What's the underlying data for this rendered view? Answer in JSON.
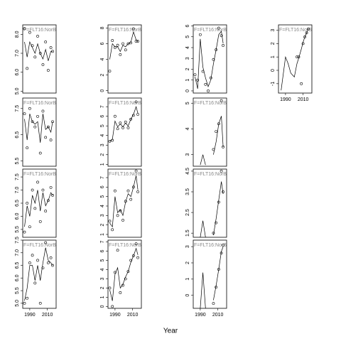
{
  "xlabel": "Year",
  "chart_data": [
    {
      "type": "scatter",
      "label": "F=FLT16:NorBa",
      "xlim": [
        1982,
        2020
      ],
      "ylim": [
        4.9,
        8.5
      ],
      "yticks": [
        {
          "value": 5,
          "label": "5.0"
        },
        {
          "value": 6,
          "label": "6.0"
        },
        {
          "value": 7,
          "label": "7.0"
        },
        {
          "value": 8,
          "label": "8.0"
        }
      ],
      "x": [
        1984,
        1987,
        1990,
        1993,
        1996,
        1999,
        2002,
        2005,
        2008,
        2011,
        2014,
        2016
      ],
      "values": [
        8.3,
        6.2,
        8.1,
        7.4,
        6.8,
        7.9,
        7.0,
        6.4,
        7.6,
        6.1,
        7.3,
        7.1
      ],
      "line_values": [
        7.6,
        6.8,
        7.6,
        7.3,
        7.0,
        7.5,
        7.0,
        6.7,
        7.2,
        6.6,
        7.1,
        7.1
      ]
    },
    {
      "type": "scatter",
      "label": "F=FLT16:NorBa",
      "xlim": [
        1982,
        2020
      ],
      "ylim": [
        -0.3,
        8.4
      ],
      "yticks": [
        0,
        2,
        4,
        6,
        8
      ],
      "x": [
        1984,
        1987,
        1990,
        1993,
        1996,
        1999,
        2002,
        2005,
        2008,
        2011,
        2014,
        2016
      ],
      "values": [
        2.5,
        6.4,
        5.5,
        5.8,
        4.6,
        6.0,
        5.2,
        6.0,
        6.1,
        7.9,
        6.3,
        6.3
      ],
      "line_values": [
        4.0,
        6.0,
        5.6,
        5.6,
        5.0,
        5.8,
        5.6,
        6.0,
        6.2,
        7.5,
        6.5,
        6.3
      ]
    },
    {
      "type": "scatter",
      "label": "F=FLT16:NorBa",
      "xlim": [
        1982,
        2020
      ],
      "ylim": [
        -0.2,
        6.1
      ],
      "yticks": [
        0,
        1,
        2,
        3,
        4,
        5,
        6
      ],
      "x": [
        1984,
        1987,
        1990,
        1993,
        1996,
        1999,
        2002,
        2005,
        2008,
        2011,
        2014,
        2016
      ],
      "values": [
        1.5,
        1.0,
        5.2,
        1.8,
        0.6,
        0.0,
        1.2,
        2.9,
        3.8,
        5.8,
        5.1,
        4.2
      ],
      "line_values": [
        1.3,
        0.2,
        4.8,
        2.2,
        1.2,
        0.4,
        1.0,
        2.5,
        3.8,
        5.2,
        5.5,
        4.4
      ]
    },
    {
      "type": "scatter",
      "label": "F=FLT16:NorBa",
      "xlim": [
        1982,
        2020
      ],
      "ylim": [
        -1.7,
        3.4
      ],
      "yticks": [
        -1,
        0,
        1,
        2,
        3
      ],
      "xticks": [
        1990,
        2010
      ],
      "x": [
        1985,
        1990,
        1993,
        1996,
        2000,
        2003,
        2005,
        2008,
        2010,
        2012,
        2014,
        2016
      ],
      "values": [
        null,
        null,
        null,
        null,
        null,
        1.0,
        1.0,
        -1.0,
        2.0,
        2.5,
        2.8,
        3.1
      ],
      "line_values": [
        -1.5,
        1.0,
        0.5,
        -0.2,
        -0.5,
        0.5,
        0.9,
        1.6,
        2.1,
        2.5,
        2.8,
        3.1
      ]
    },
    {
      "type": "scatter",
      "label": "F=FLT16:NorBa",
      "xlim": [
        1982,
        2020
      ],
      "ylim": [
        5.3,
        7.9
      ],
      "yticks": [
        5.5,
        6.5,
        7.5
      ],
      "x": [
        1984,
        1987,
        1990,
        1993,
        1996,
        1999,
        2002,
        2005,
        2008,
        2011,
        2014,
        2016
      ],
      "values": [
        7.3,
        6.0,
        7.5,
        7.0,
        6.8,
        7.2,
        5.8,
        7.4,
        6.4,
        6.8,
        6.3,
        7.0
      ],
      "line_values": [
        7.1,
        6.3,
        7.3,
        7.0,
        6.9,
        7.0,
        6.2,
        7.3,
        6.7,
        6.8,
        6.6,
        7.0
      ]
    },
    {
      "type": "scatter",
      "label": "F=FLT16:NorBa",
      "xlim": [
        1982,
        2020
      ],
      "ylim": [
        0.8,
        7.9
      ],
      "yticks": [
        1,
        2,
        3,
        4,
        5,
        6,
        7
      ],
      "x": [
        1984,
        1987,
        1990,
        1993,
        1996,
        1999,
        2002,
        2005,
        2008,
        2011,
        2014,
        2016
      ],
      "values": [
        3.4,
        3.5,
        6.0,
        4.7,
        5.3,
        4.8,
        5.4,
        4.8,
        5.7,
        6.1,
        7.5,
        6.2
      ],
      "line_values": [
        3.4,
        3.6,
        5.5,
        4.9,
        5.2,
        4.9,
        5.3,
        5.0,
        5.7,
        6.2,
        7.0,
        6.3
      ]
    },
    {
      "type": "scatter",
      "label": "F=FLT16:NorBa",
      "xlim": [
        1982,
        2020
      ],
      "ylim": [
        2.55,
        5.2
      ],
      "yticks": [
        3,
        4,
        5
      ],
      "x": [
        1984,
        1987,
        1990,
        1993,
        1996,
        1999,
        2002,
        2005,
        2008,
        2011,
        2014,
        2016
      ],
      "values": [
        null,
        null,
        null,
        null,
        null,
        null,
        null,
        3.2,
        3.9,
        4.2,
        5.1,
        3.3
      ],
      "line_values": [
        null,
        null,
        2.6,
        3.0,
        2.6,
        null,
        null,
        3.0,
        3.5,
        4.2,
        4.5,
        3.3
      ]
    },
    {
      "type": "scatter",
      "label": "F=FLT16:NorBa",
      "xlim": [
        1982,
        2020
      ],
      "ylim": [
        5.2,
        7.8
      ],
      "yticks": [
        5.5,
        {
          "value": 6,
          "label": "6.0"
        },
        6.5,
        {
          "value": 7,
          "label": "7.0"
        },
        7.5
      ],
      "x": [
        1984,
        1987,
        1990,
        1993,
        1996,
        1999,
        2002,
        2005,
        2008,
        2011,
        2014,
        2016
      ],
      "values": [
        5.4,
        6.5,
        5.6,
        7.0,
        6.3,
        7.3,
        5.8,
        7.0,
        6.2,
        6.6,
        7.1,
        6.8
      ],
      "line_values": [
        5.6,
        6.4,
        6.0,
        6.8,
        6.5,
        7.0,
        6.2,
        6.9,
        6.4,
        6.6,
        6.9,
        6.8
      ]
    },
    {
      "type": "scatter",
      "label": "F=FLT16:NorBa",
      "xlim": [
        1982,
        2020
      ],
      "ylim": [
        0.7,
        7.9
      ],
      "yticks": [
        1,
        2,
        3,
        4,
        5,
        6,
        7
      ],
      "x": [
        1984,
        1987,
        1990,
        1993,
        1996,
        1999,
        2002,
        2005,
        2008,
        2011,
        2014,
        2016
      ],
      "values": [
        2.4,
        1.5,
        5.6,
        3.0,
        3.5,
        2.5,
        4.5,
        5.6,
        4.7,
        6.0,
        7.7,
        5.5
      ],
      "line_values": [
        2.2,
        1.8,
        5.0,
        3.3,
        3.6,
        3.0,
        4.4,
        5.3,
        5.0,
        6.0,
        7.2,
        5.7
      ]
    },
    {
      "type": "scatter",
      "label": "F=FLT16:NorBa",
      "xlim": [
        1982,
        2020
      ],
      "ylim": [
        1.3,
        4.6
      ],
      "yticks": [
        1.5,
        2.5,
        3.5,
        4.5
      ],
      "x": [
        1984,
        1987,
        1990,
        1993,
        1996,
        1999,
        2002,
        2005,
        2008,
        2011,
        2014,
        2016
      ],
      "values": [
        null,
        null,
        null,
        null,
        null,
        null,
        null,
        1.5,
        2.0,
        3.0,
        4.5,
        3.5
      ],
      "line_values": [
        null,
        null,
        1.3,
        2.1,
        1.3,
        null,
        null,
        1.4,
        2.2,
        3.1,
        4.0,
        3.4
      ]
    },
    {
      "type": "scatter",
      "label": "F=FLT16:NorBa",
      "xlim": [
        1982,
        2020
      ],
      "ylim": [
        4.8,
        7.5
      ],
      "yticks": [
        {
          "value": 5,
          "label": "5.0"
        },
        5.5,
        {
          "value": 6,
          "label": "6.0"
        },
        6.5,
        {
          "value": 7,
          "label": "7.0"
        },
        7.5
      ],
      "xticks": [
        1990,
        2010
      ],
      "x": [
        1984,
        1987,
        1990,
        1993,
        1996,
        1999,
        2002,
        2005,
        2008,
        2011,
        2014,
        2016
      ],
      "values": [
        5.0,
        5.2,
        6.6,
        6.9,
        5.8,
        6.7,
        5.0,
        6.4,
        7.4,
        6.6,
        6.8,
        6.5
      ],
      "line_values": [
        5.1,
        5.6,
        6.5,
        6.5,
        5.9,
        6.5,
        5.9,
        6.6,
        7.2,
        6.7,
        6.6,
        6.5
      ]
    },
    {
      "type": "scatter",
      "label": "F=FLT16:NorBa",
      "xlim": [
        1982,
        2020
      ],
      "ylim": [
        -0.2,
        7.2
      ],
      "yticks": [
        0,
        1,
        2,
        3,
        4,
        5,
        6,
        7
      ],
      "xticks": [
        1990,
        2010
      ],
      "x": [
        1984,
        1987,
        1990,
        1993,
        1996,
        1999,
        2002,
        2005,
        2008,
        2011,
        2014,
        2016
      ],
      "values": [
        2.0,
        0.0,
        3.7,
        6.1,
        1.5,
        2.3,
        3.0,
        3.8,
        5.0,
        5.5,
        6.8,
        5.3
      ],
      "line_values": [
        1.8,
        0.6,
        3.5,
        4.2,
        2.0,
        2.4,
        3.2,
        3.8,
        4.8,
        5.5,
        6.3,
        5.6
      ]
    },
    {
      "type": "scatter",
      "label": "F=FLT16:NorBa",
      "xlim": [
        1982,
        2020
      ],
      "ylim": [
        -0.8,
        3.4
      ],
      "yticks": [
        0,
        1,
        2,
        3
      ],
      "xticks": [
        1990,
        2010
      ],
      "x": [
        1984,
        1987,
        1990,
        1993,
        1996,
        1999,
        2002,
        2005,
        2008,
        2011,
        2014,
        2016
      ],
      "values": [
        null,
        null,
        null,
        null,
        null,
        null,
        null,
        -0.5,
        0.5,
        1.6,
        2.6,
        3.1
      ],
      "line_values": [
        null,
        null,
        -0.8,
        1.4,
        -0.8,
        null,
        null,
        -0.3,
        0.6,
        1.6,
        2.7,
        3.0
      ]
    }
  ]
}
